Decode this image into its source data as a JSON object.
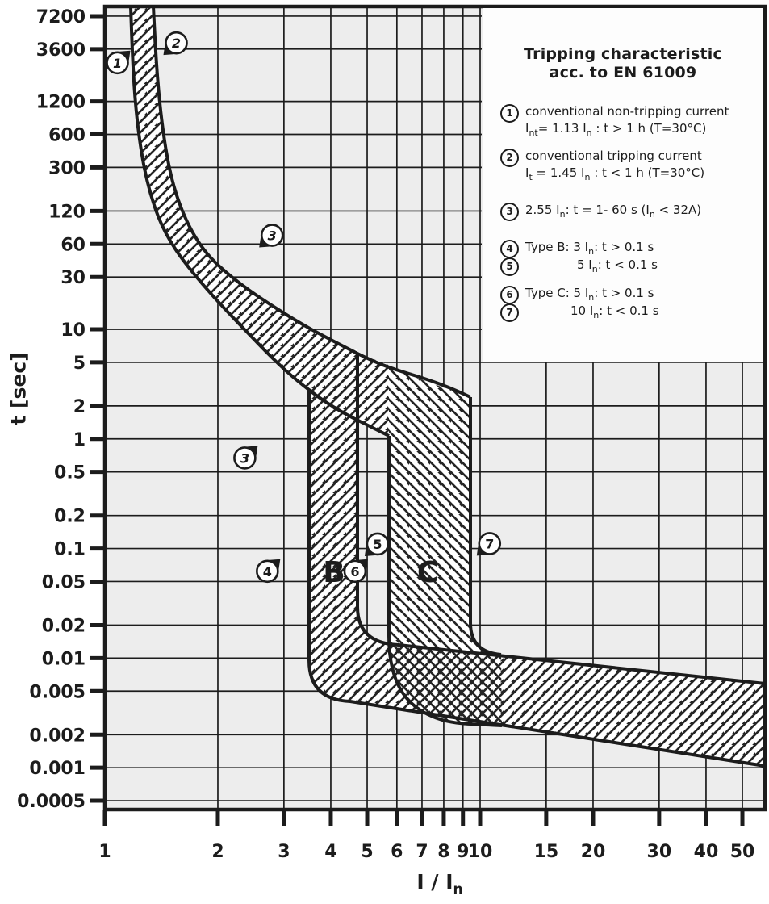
{
  "figure": {
    "background": "#ffffff",
    "plot_background": "#ededed",
    "band_fill": "#ffffff",
    "ink": "#1c1c1c"
  },
  "legend": {
    "title_line1": "Tripping characteristic",
    "title_line2": "acc. to EN 61009",
    "items": [
      {
        "num": "1",
        "lines": [
          [
            [
              "t",
              "conventional non-tripping current"
            ]
          ],
          [
            [
              "t",
              "I"
            ],
            [
              "sub",
              "nt"
            ],
            [
              "t",
              "= 1.13 I"
            ],
            [
              "sub",
              "n"
            ],
            [
              "t",
              " : t > 1 h   (T=30°C)"
            ]
          ]
        ]
      },
      {
        "num": "2",
        "lines": [
          [
            [
              "t",
              "conventional tripping current"
            ]
          ],
          [
            [
              "t",
              "I"
            ],
            [
              "sub",
              "t"
            ],
            [
              "t",
              " = 1.45 I"
            ],
            [
              "sub",
              "n"
            ],
            [
              "t",
              " : t < 1 h   (T=30°C)"
            ]
          ]
        ]
      },
      {
        "num": "3",
        "lines": [
          [
            [
              "t",
              "2.55 I"
            ],
            [
              "sub",
              "n"
            ],
            [
              "t",
              ": t = 1- 60 s (I"
            ],
            [
              "sub",
              "n"
            ],
            [
              "t",
              " < 32A)"
            ]
          ]
        ]
      },
      {
        "num": "4",
        "lines": [
          [
            [
              "t",
              "Type B: 3 I"
            ],
            [
              "sub",
              "n"
            ],
            [
              "t",
              ": t > 0.1 s"
            ]
          ]
        ]
      },
      {
        "num": "5",
        "indent": 64,
        "lines": [
          [
            [
              "t",
              "5 I"
            ],
            [
              "sub",
              "n"
            ],
            [
              "t",
              ": t < 0.1 s"
            ]
          ]
        ]
      },
      {
        "num": "6",
        "lines": [
          [
            [
              "t",
              "Type C: 5 I"
            ],
            [
              "sub",
              "n"
            ],
            [
              "t",
              ": t > 0.1 s"
            ]
          ]
        ]
      },
      {
        "num": "7",
        "indent": 56,
        "lines": [
          [
            [
              "t",
              "10 I"
            ],
            [
              "sub",
              "n"
            ],
            [
              "t",
              ": t < 0.1 s"
            ]
          ]
        ]
      }
    ]
  },
  "axes": {
    "y": {
      "title": "t [sec]",
      "tick_labels": [
        "7200",
        "3600",
        "1200",
        "600",
        "300",
        "120",
        "60",
        "30",
        "10",
        "5",
        "2",
        "1",
        "0.5",
        "0.2",
        "0.1",
        "0.05",
        "0.02",
        "0.01",
        "0.005",
        "0.002",
        "0.001",
        "0.0005"
      ],
      "tick_values": [
        7200,
        3600,
        1200,
        600,
        300,
        120,
        60,
        30,
        10,
        5,
        2,
        1,
        0.5,
        0.2,
        0.1,
        0.05,
        0.02,
        0.01,
        0.005,
        0.002,
        0.001,
        0.0005
      ]
    },
    "x": {
      "title": "I / I",
      "title_sub": "n",
      "tick_labels": [
        "1",
        "2",
        "3",
        "4",
        "5",
        "6",
        "7",
        "8",
        "9",
        "10",
        "15",
        "20",
        "30",
        "40",
        "50"
      ],
      "tick_values": [
        1,
        2,
        3,
        4,
        5,
        6,
        7,
        8,
        9,
        10,
        15,
        20,
        30,
        40,
        50
      ]
    }
  },
  "chart_data": {
    "type": "area",
    "title": "Tripping characteristic acc. to EN 61009",
    "xlabel": "I / In",
    "ylabel": "t [sec]",
    "x_scale": "log",
    "y_scale": "log",
    "xlim": [
      1,
      57
    ],
    "ylim": [
      0.0005,
      7200
    ],
    "grid": true,
    "series": [
      {
        "name": "thermal band lower limit (1.13 In, curve 1)",
        "hatch": "///",
        "points": [
          [
            1.13,
            8000
          ],
          [
            1.2,
            1850
          ],
          [
            1.23,
            670
          ],
          [
            1.29,
            265
          ],
          [
            1.38,
            123
          ],
          [
            1.49,
            68
          ],
          [
            1.66,
            38
          ],
          [
            1.88,
            21
          ],
          [
            2.2,
            12
          ],
          [
            2.6,
            6.6
          ],
          [
            3.1,
            4.0
          ],
          [
            3.5,
            2.9
          ],
          [
            4.2,
            2.0
          ],
          [
            4.9,
            1.5
          ],
          [
            5.7,
            1.1
          ]
        ]
      },
      {
        "name": "thermal band upper limit (1.45 In, curve 2)",
        "hatch": "///",
        "points": [
          [
            1.35,
            8000
          ],
          [
            1.39,
            1850
          ],
          [
            1.45,
            565
          ],
          [
            1.55,
            190
          ],
          [
            1.72,
            81
          ],
          [
            1.98,
            45
          ],
          [
            2.3,
            28
          ],
          [
            2.7,
            20
          ],
          [
            3.1,
            14.5
          ],
          [
            3.6,
            10.5
          ],
          [
            4.2,
            7.8
          ],
          [
            4.7,
            6.0
          ],
          [
            5.5,
            4.8
          ],
          [
            6.6,
            3.9
          ],
          [
            7.8,
            3.0
          ],
          [
            9.4,
            2.4
          ]
        ]
      },
      {
        "name": "Type B magnetic band lower limit",
        "hatch": "///",
        "points": [
          [
            3.5,
            2.9
          ],
          [
            3.5,
            0.035
          ],
          [
            4.1,
            0.019
          ],
          [
            57,
            0.001
          ]
        ]
      },
      {
        "name": "Type B magnetic band upper limit",
        "hatch": "///",
        "points": [
          [
            4.7,
            6.0
          ],
          [
            4.7,
            0.055
          ],
          [
            5.4,
            0.032
          ],
          [
            57,
            0.006
          ]
        ]
      },
      {
        "name": "Type C magnetic band lower limit",
        "hatch": "\\\\\\",
        "points": [
          [
            5.7,
            1.1
          ],
          [
            5.7,
            0.027
          ],
          [
            6.5,
            0.012
          ],
          [
            8.0,
            0.0075
          ],
          [
            11.4,
            0.0055
          ]
        ]
      },
      {
        "name": "Type C magnetic band upper limit",
        "hatch": "\\\\\\",
        "points": [
          [
            9.4,
            2.4
          ],
          [
            9.4,
            0.047
          ],
          [
            11.4,
            0.028
          ]
        ]
      }
    ],
    "markers": [
      {
        "label": "1",
        "i_over_in": 1.08,
        "t_sec": 2700,
        "flag": "ne",
        "italic": true
      },
      {
        "label": "2",
        "i_over_in": 1.55,
        "t_sec": 4100,
        "flag": "sw",
        "italic": true
      },
      {
        "label": "3",
        "i_over_in": 2.79,
        "t_sec": 72,
        "flag": "sw",
        "italic": true
      },
      {
        "label": "3",
        "i_over_in": 2.36,
        "t_sec": 0.67,
        "flag": "ne",
        "italic": true
      },
      {
        "label": "4",
        "i_over_in": 2.71,
        "t_sec": 0.062,
        "flag": "ne",
        "italic": false
      },
      {
        "label": "5",
        "i_over_in": 5.33,
        "t_sec": 0.11,
        "flag": "sw",
        "italic": false
      },
      {
        "label": "6",
        "i_over_in": 4.64,
        "t_sec": 0.062,
        "flag": "ne",
        "italic": false
      },
      {
        "label": "7",
        "i_over_in": 10.6,
        "t_sec": 0.111,
        "flag": "sw",
        "italic": false
      }
    ],
    "zone_labels": [
      {
        "text": "B",
        "i_over_in": 4.08,
        "t_sec": 0.0605
      },
      {
        "text": "C",
        "i_over_in": 7.25,
        "t_sec": 0.0605
      }
    ],
    "legend_position": "upper right"
  }
}
